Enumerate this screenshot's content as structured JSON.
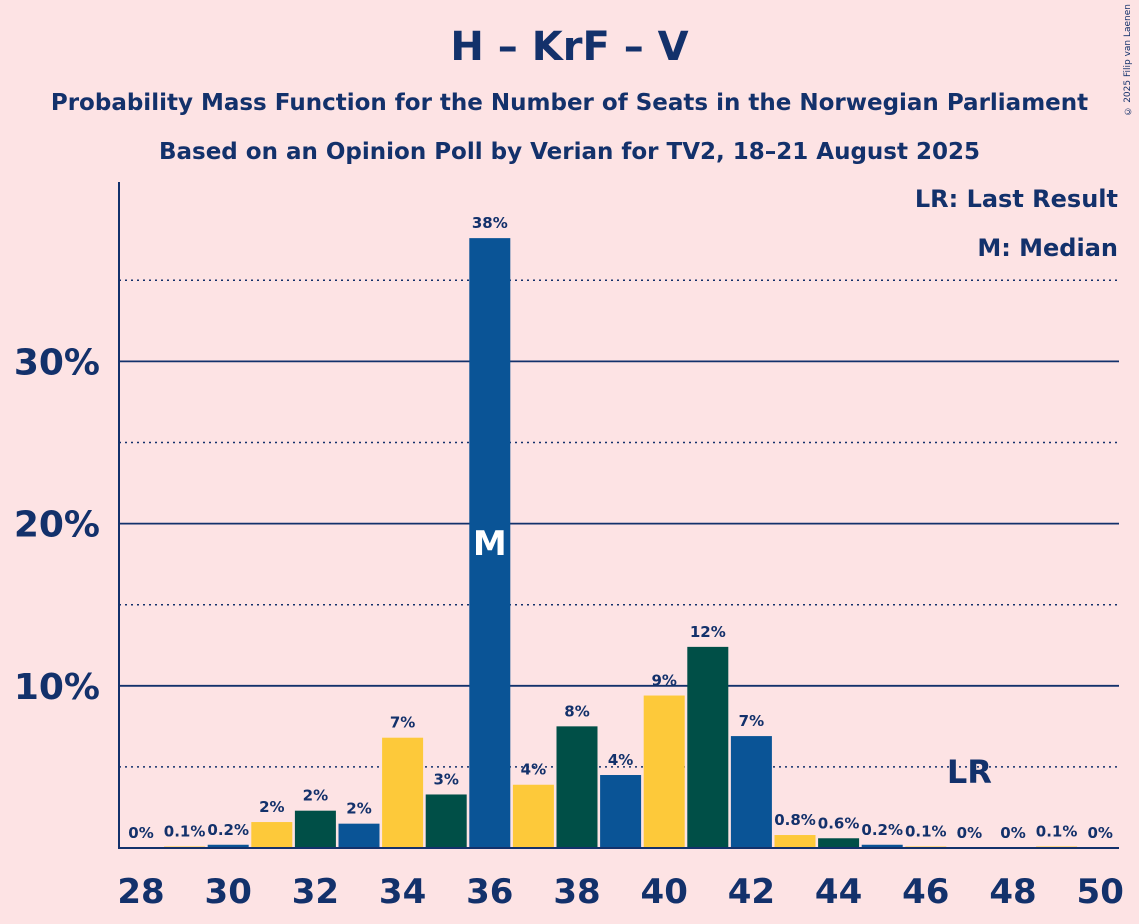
{
  "title": "H – KrF – V",
  "subtitle": "Probability Mass Function for the Number of Seats in the Norwegian Parliament",
  "subtitle2": "Based on an Opinion Poll by Verian for TV2, 18–21 August 2025",
  "copyright": "© 2025 Filip van Laenen",
  "legend": {
    "last_result": "LR: Last Result",
    "median": "M: Median"
  },
  "colors": {
    "background": "#fde3e4",
    "text": "#13316b",
    "blue": "#0a5496",
    "yellow": "#fdc93a",
    "green": "#004f47"
  },
  "chart_data": {
    "type": "bar",
    "title": "H – KrF – V",
    "xlabel": "",
    "ylabel": "",
    "x_ticks": [
      "28",
      "30",
      "32",
      "34",
      "36",
      "38",
      "40",
      "42",
      "44",
      "46",
      "48",
      "50"
    ],
    "y_ticks": [
      "10%",
      "20%",
      "30%"
    ],
    "ylim": [
      0,
      41
    ],
    "grid": "solid lines at 10%, 20%, 30%; dotted lines at 5%, 15%, 25%, 35%",
    "median": 36,
    "median_label": "M",
    "last_result": 47,
    "last_result_label": "LR",
    "bars": [
      {
        "x": 28,
        "value": 0.0,
        "label": "0%",
        "color": "blue"
      },
      {
        "x": 29,
        "value": 0.05,
        "label": "0.1%",
        "color": "yellow"
      },
      {
        "x": 30,
        "value": 0.2,
        "label": "0.2%",
        "color": "blue"
      },
      {
        "x": 31,
        "value": 1.6,
        "label": "2%",
        "color": "yellow"
      },
      {
        "x": 32,
        "value": 2.3,
        "label": "2%",
        "color": "green"
      },
      {
        "x": 33,
        "value": 1.5,
        "label": "2%",
        "color": "blue"
      },
      {
        "x": 34,
        "value": 6.8,
        "label": "7%",
        "color": "yellow"
      },
      {
        "x": 35,
        "value": 3.3,
        "label": "3%",
        "color": "green"
      },
      {
        "x": 36,
        "value": 37.6,
        "label": "38%",
        "color": "blue"
      },
      {
        "x": 37,
        "value": 3.9,
        "label": "4%",
        "color": "yellow"
      },
      {
        "x": 38,
        "value": 7.5,
        "label": "8%",
        "color": "green"
      },
      {
        "x": 39,
        "value": 4.5,
        "label": "4%",
        "color": "blue"
      },
      {
        "x": 40,
        "value": 9.4,
        "label": "9%",
        "color": "yellow"
      },
      {
        "x": 41,
        "value": 12.4,
        "label": "12%",
        "color": "green"
      },
      {
        "x": 42,
        "value": 6.9,
        "label": "7%",
        "color": "blue"
      },
      {
        "x": 43,
        "value": 0.8,
        "label": "0.8%",
        "color": "yellow"
      },
      {
        "x": 44,
        "value": 0.6,
        "label": "0.6%",
        "color": "green"
      },
      {
        "x": 45,
        "value": 0.2,
        "label": "0.2%",
        "color": "blue"
      },
      {
        "x": 46,
        "value": 0.05,
        "label": "0.1%",
        "color": "yellow"
      },
      {
        "x": 47,
        "value": 0.0,
        "label": "0%",
        "color": "green"
      },
      {
        "x": 48,
        "value": 0.0,
        "label": "0%",
        "color": "blue"
      },
      {
        "x": 49,
        "value": 0.05,
        "label": "0.1%",
        "color": "yellow"
      },
      {
        "x": 50,
        "value": 0.0,
        "label": "0%",
        "color": "green"
      }
    ]
  }
}
